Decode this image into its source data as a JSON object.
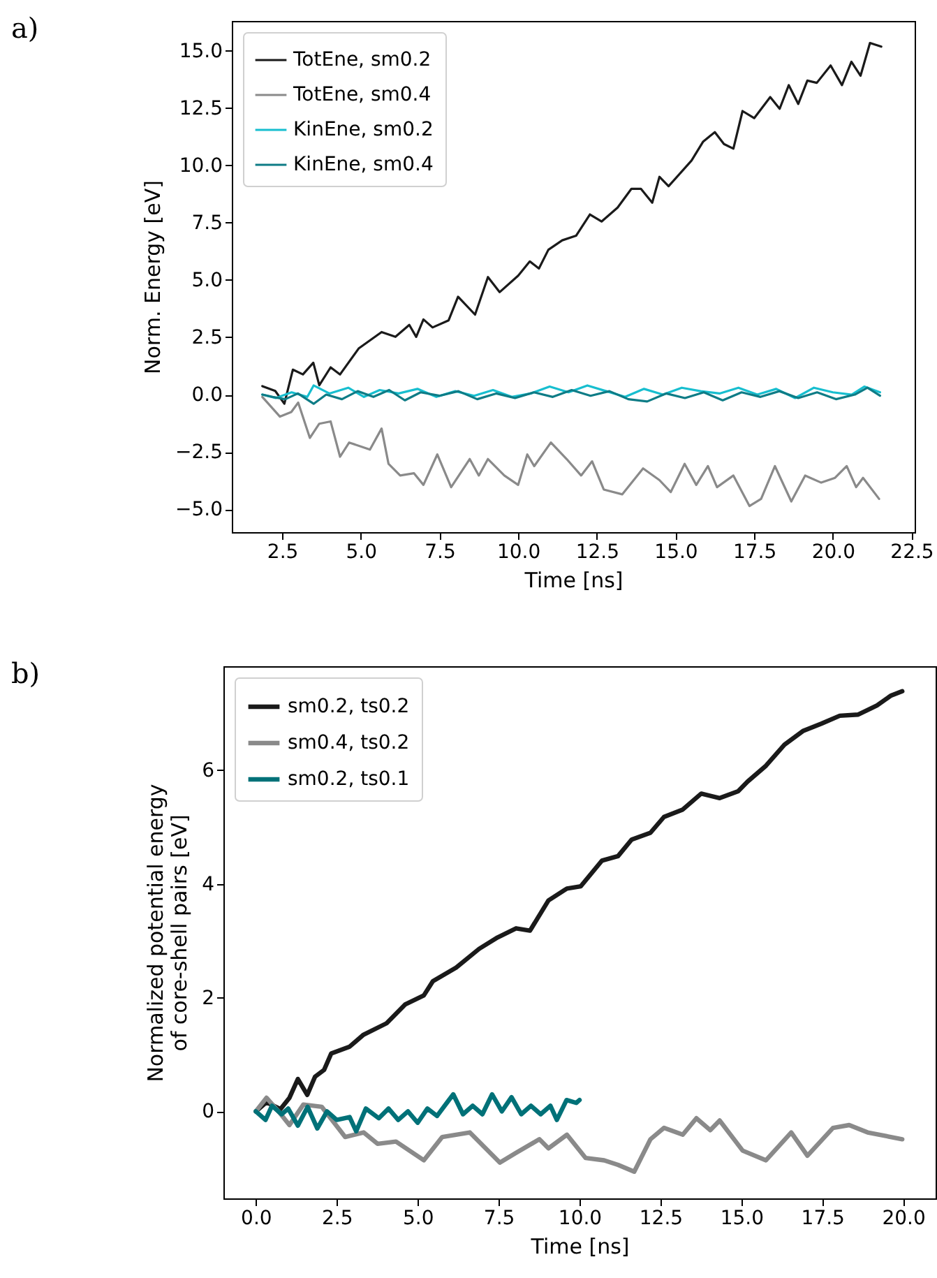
{
  "chart_data": [
    {
      "type": "line",
      "xlabel": "Time [ns]",
      "ylabel": "Norm. Energy [eV]",
      "annotations": [
        "a)"
      ],
      "xlim": [
        0.9,
        22.6
      ],
      "ylim": [
        -6.0,
        16.3
      ],
      "xticks": [
        {
          "value": 2.5,
          "label": "2.5"
        },
        {
          "value": 5,
          "label": "5.0"
        },
        {
          "value": 7.5,
          "label": "7.5"
        },
        {
          "value": 10,
          "label": "10.0"
        },
        {
          "value": 12.5,
          "label": "12.5"
        },
        {
          "value": 15,
          "label": "15.0"
        },
        {
          "value": 17.5,
          "label": "17.5"
        },
        {
          "value": 20,
          "label": "20.0"
        },
        {
          "value": 22.5,
          "label": "22.5"
        }
      ],
      "yticks": [
        {
          "value": -5,
          "label": "−5.0"
        },
        {
          "value": -2.5,
          "label": "−2.5"
        },
        {
          "value": 0,
          "label": "0.0"
        },
        {
          "value": 2.5,
          "label": "2.5"
        },
        {
          "value": 5,
          "label": "5.0"
        },
        {
          "value": 7.5,
          "label": "7.5"
        },
        {
          "value": 10,
          "label": "10.0"
        },
        {
          "value": 12.5,
          "label": "12.5"
        },
        {
          "value": 15,
          "label": "15.0"
        }
      ],
      "legend": "top left",
      "grid": false,
      "line_style": "solid",
      "marker": "none",
      "series": [
        {
          "name": "TotEne, sm0.2",
          "color": "#1a1a1a",
          "x": [
            1.87,
            2.28,
            2.57,
            2.84,
            3.16,
            3.49,
            3.68,
            4.04,
            4.34,
            4.93,
            5.66,
            6.1,
            6.54,
            6.76,
            6.99,
            7.28,
            7.79,
            8.09,
            8.63,
            9.04,
            9.41,
            10.0,
            10.37,
            10.66,
            10.96,
            11.4,
            11.84,
            12.28,
            12.65,
            13.16,
            13.6,
            13.9,
            14.26,
            14.49,
            14.78,
            15.51,
            15.88,
            16.25,
            16.54,
            16.84,
            17.13,
            17.5,
            18.01,
            18.31,
            18.6,
            18.9,
            19.19,
            19.49,
            19.93,
            20.29,
            20.59,
            20.88,
            21.18,
            21.54
          ],
          "values": [
            0.37,
            0.16,
            -0.4,
            1.09,
            0.88,
            1.39,
            0.41,
            1.19,
            0.88,
            2.01,
            2.73,
            2.52,
            3.04,
            2.52,
            3.28,
            2.93,
            3.24,
            4.27,
            3.49,
            5.13,
            4.47,
            5.19,
            5.81,
            5.5,
            6.32,
            6.73,
            6.93,
            7.86,
            7.55,
            8.16,
            8.98,
            8.98,
            8.37,
            9.5,
            9.09,
            10.21,
            11.04,
            11.45,
            10.93,
            10.73,
            12.37,
            12.06,
            12.98,
            12.47,
            13.5,
            12.68,
            13.7,
            13.6,
            14.36,
            13.5,
            14.52,
            13.91,
            15.34,
            15.18
          ]
        },
        {
          "name": "TotEne, sm0.4",
          "color": "#8a8a8a",
          "x": [
            1.87,
            2.43,
            2.79,
            3.01,
            3.38,
            3.68,
            4.04,
            4.34,
            4.63,
            5.29,
            5.66,
            5.88,
            6.25,
            6.69,
            6.99,
            7.43,
            7.87,
            8.46,
            8.75,
            9.04,
            9.56,
            10.0,
            10.29,
            10.51,
            11.04,
            11.54,
            12.0,
            12.35,
            12.72,
            13.31,
            13.97,
            14.49,
            14.85,
            15.29,
            15.66,
            16.03,
            16.32,
            16.84,
            17.35,
            17.72,
            18.16,
            18.68,
            19.12,
            19.63,
            20.07,
            20.44,
            20.74,
            20.96,
            21.47
          ],
          "values": [
            -0.1,
            -0.96,
            -0.76,
            -0.35,
            -1.89,
            -1.27,
            -1.17,
            -2.71,
            -2.09,
            -2.4,
            -1.48,
            -3.02,
            -3.53,
            -3.43,
            -3.94,
            -2.61,
            -4.04,
            -2.81,
            -3.53,
            -2.81,
            -3.53,
            -3.94,
            -2.61,
            -3.12,
            -2.09,
            -2.81,
            -3.53,
            -2.91,
            -4.14,
            -4.35,
            -3.22,
            -3.73,
            -4.25,
            -3.02,
            -3.94,
            -3.12,
            -4.04,
            -3.53,
            -4.86,
            -4.55,
            -3.12,
            -4.66,
            -3.53,
            -3.84,
            -3.63,
            -3.12,
            -4.04,
            -3.63,
            -4.55
          ]
        },
        {
          "name": "KinEne, sm0.2",
          "color": "#17becf",
          "x": [
            1.87,
            2.3,
            2.8,
            3.3,
            3.5,
            4.0,
            4.6,
            5.1,
            5.6,
            6.2,
            6.8,
            7.4,
            8.0,
            8.6,
            9.2,
            9.8,
            10.4,
            11.0,
            11.6,
            12.2,
            12.8,
            13.4,
            14.0,
            14.6,
            15.2,
            15.8,
            16.4,
            17.0,
            17.6,
            18.2,
            18.8,
            19.4,
            20.0,
            20.6,
            21.0,
            21.5
          ],
          "values": [
            0.0,
            -0.15,
            0.1,
            -0.1,
            0.4,
            0.05,
            0.3,
            -0.1,
            0.2,
            0.05,
            0.25,
            -0.1,
            0.15,
            -0.05,
            0.2,
            -0.1,
            0.05,
            0.35,
            0.1,
            0.4,
            0.15,
            -0.1,
            0.25,
            0.0,
            0.3,
            0.15,
            0.05,
            0.3,
            0.0,
            0.25,
            -0.15,
            0.3,
            0.1,
            0.0,
            0.35,
            0.1
          ]
        },
        {
          "name": "KinEne, sm0.4",
          "color": "#0e7c86",
          "x": [
            1.87,
            2.2,
            2.6,
            3.0,
            3.5,
            3.9,
            4.4,
            4.9,
            5.4,
            5.9,
            6.4,
            6.9,
            7.5,
            8.1,
            8.7,
            9.3,
            9.9,
            10.5,
            11.1,
            11.7,
            12.3,
            12.9,
            13.5,
            14.1,
            14.7,
            15.3,
            15.9,
            16.5,
            17.1,
            17.7,
            18.3,
            18.9,
            19.5,
            20.1,
            20.7,
            21.1,
            21.5
          ],
          "values": [
            0.0,
            -0.1,
            -0.2,
            0.05,
            -0.4,
            0.0,
            -0.2,
            0.15,
            -0.1,
            0.2,
            -0.25,
            0.1,
            -0.05,
            0.15,
            -0.2,
            0.05,
            -0.15,
            0.1,
            -0.1,
            0.2,
            -0.05,
            0.15,
            -0.2,
            -0.3,
            0.05,
            -0.15,
            0.1,
            -0.25,
            0.1,
            -0.1,
            0.15,
            -0.15,
            0.1,
            -0.2,
            0.0,
            0.3,
            -0.05
          ]
        }
      ]
    },
    {
      "type": "line",
      "xlabel": "Time [ns]",
      "ylabel": "Normalized potential energy\nof core-shell pairs [eV]",
      "annotations": [
        "b)"
      ],
      "xlim": [
        -1.0,
        21.0
      ],
      "ylim": [
        -1.53,
        7.83
      ],
      "xticks": [
        {
          "value": 0,
          "label": "0.0"
        },
        {
          "value": 2.5,
          "label": "2.5"
        },
        {
          "value": 5,
          "label": "5.0"
        },
        {
          "value": 7.5,
          "label": "7.5"
        },
        {
          "value": 10,
          "label": "10.0"
        },
        {
          "value": 12.5,
          "label": "12.5"
        },
        {
          "value": 15,
          "label": "15.0"
        },
        {
          "value": 17.5,
          "label": "17.5"
        },
        {
          "value": 20,
          "label": "20.0"
        }
      ],
      "yticks": [
        0,
        2,
        4,
        6
      ],
      "legend": "top left",
      "grid": false,
      "line_style": "solid",
      "marker": "none",
      "series": [
        {
          "name": "sm0.2, ts0.2",
          "color": "#1a1a1a",
          "x": [
            0,
            0.33,
            0.76,
            1.04,
            1.3,
            1.59,
            1.83,
            2.11,
            2.33,
            2.9,
            3.33,
            4.04,
            4.61,
            5.19,
            5.47,
            6.19,
            6.9,
            7.47,
            8.04,
            8.47,
            9.04,
            9.61,
            10.04,
            10.69,
            11.19,
            11.61,
            12.19,
            12.61,
            13.19,
            13.76,
            14.33,
            14.9,
            15.19,
            15.76,
            16.33,
            16.9,
            17.47,
            18.04,
            18.61,
            19.19,
            19.61,
            19.97
          ],
          "values": [
            0,
            0.16,
            0.04,
            0.24,
            0.57,
            0.29,
            0.61,
            0.73,
            1.02,
            1.14,
            1.35,
            1.55,
            1.88,
            2.04,
            2.29,
            2.53,
            2.86,
            3.06,
            3.22,
            3.18,
            3.71,
            3.92,
            3.96,
            4.41,
            4.49,
            4.78,
            4.9,
            5.18,
            5.31,
            5.59,
            5.51,
            5.63,
            5.8,
            6.08,
            6.45,
            6.69,
            6.82,
            6.96,
            6.98,
            7.14,
            7.31,
            7.39
          ]
        },
        {
          "name": "sm0.4, ts0.2",
          "color": "#8a8a8a",
          "x": [
            0,
            0.33,
            0.76,
            1.04,
            1.47,
            2.04,
            2.76,
            3.33,
            3.76,
            4.33,
            5.19,
            5.76,
            6.61,
            7.54,
            8.04,
            8.76,
            9.04,
            9.61,
            10.19,
            10.76,
            11.19,
            11.69,
            12.19,
            12.61,
            13.19,
            13.61,
            14.04,
            14.33,
            15.04,
            15.76,
            16.54,
            17.04,
            17.83,
            18.33,
            18.9,
            19.97
          ],
          "values": [
            0,
            0.24,
            -0.04,
            -0.24,
            0.12,
            0.08,
            -0.45,
            -0.37,
            -0.57,
            -0.53,
            -0.86,
            -0.45,
            -0.37,
            -0.9,
            -0.73,
            -0.49,
            -0.65,
            -0.41,
            -0.82,
            -0.86,
            -0.94,
            -1.06,
            -0.49,
            -0.29,
            -0.41,
            -0.12,
            -0.33,
            -0.16,
            -0.69,
            -0.86,
            -0.37,
            -0.78,
            -0.29,
            -0.24,
            -0.37,
            -0.49
          ]
        },
        {
          "name": "sm0.2, ts0.1",
          "color": "#007178",
          "x": [
            0,
            0.3,
            0.5,
            0.8,
            1.0,
            1.3,
            1.6,
            1.9,
            2.2,
            2.5,
            2.9,
            3.1,
            3.4,
            3.8,
            4.1,
            4.4,
            4.7,
            5.0,
            5.3,
            5.6,
            5.9,
            6.1,
            6.4,
            6.7,
            7.0,
            7.3,
            7.6,
            7.9,
            8.2,
            8.5,
            8.8,
            9.1,
            9.3,
            9.6,
            9.9,
            10.0
          ],
          "values": [
            0,
            -0.15,
            0.1,
            -0.05,
            0.05,
            -0.25,
            0.08,
            -0.3,
            0.0,
            -0.15,
            -0.1,
            -0.35,
            0.05,
            -0.12,
            0.05,
            -0.15,
            0.0,
            -0.2,
            0.05,
            -0.08,
            0.15,
            0.3,
            -0.05,
            0.1,
            -0.05,
            0.3,
            0.0,
            0.25,
            -0.05,
            0.1,
            -0.05,
            0.1,
            -0.15,
            0.2,
            0.15,
            0.2
          ]
        }
      ]
    }
  ]
}
